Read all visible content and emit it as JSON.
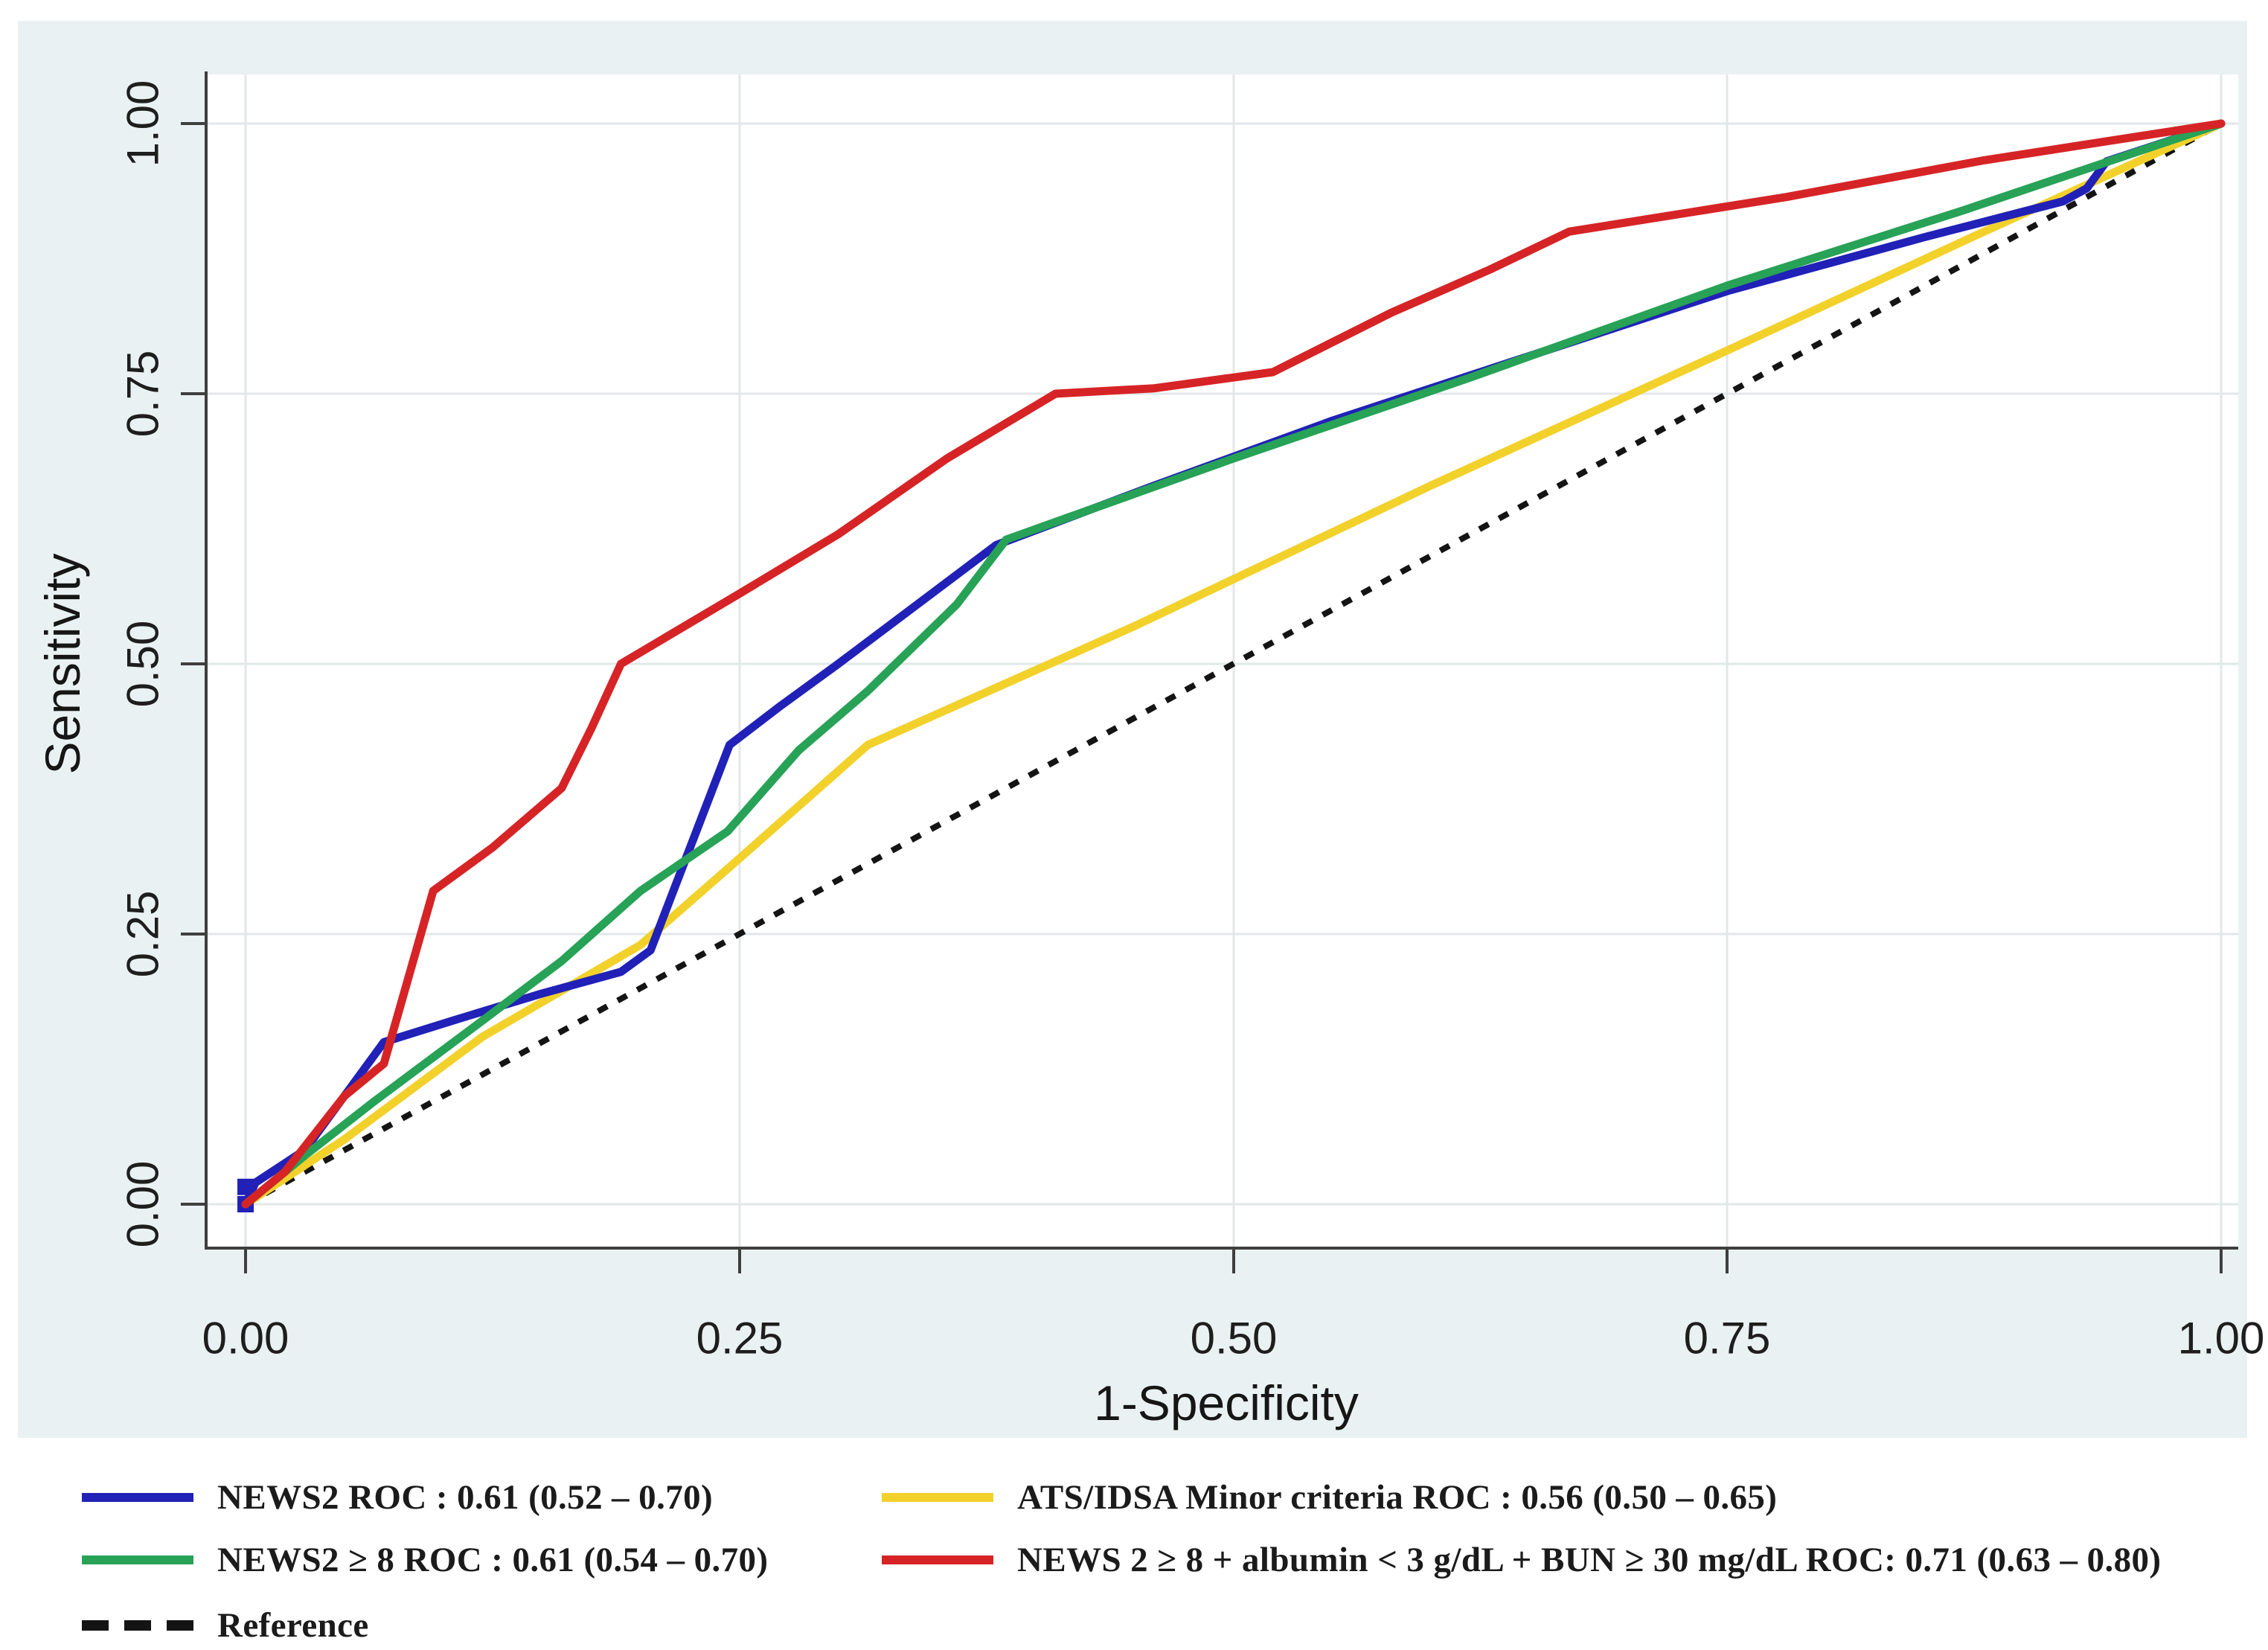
{
  "figure": {
    "background_color": "#eaf1f3",
    "plot_background": "#ffffff",
    "grid_color": "#e2e7e9",
    "axis_color": "#3f3f3f",
    "text_color": "#1e1e1e"
  },
  "axes": {
    "x": {
      "title": "1-Specificity",
      "tick_labels": [
        "0.00",
        "0.25",
        "0.50",
        "0.75",
        "1.00"
      ],
      "range": [
        0,
        1
      ]
    },
    "y": {
      "title": "Sensitivity",
      "tick_labels": [
        "0.00",
        "0.25",
        "0.50",
        "0.75",
        "1.00"
      ],
      "range": [
        0,
        1
      ]
    }
  },
  "legend": {
    "entries": [
      {
        "label": "NEWS2  ROC : 0.61 (0.52 – 0.70)",
        "color": "#2121b8",
        "dash": false
      },
      {
        "label": "ATS/IDSA Minor criteria  ROC : 0.56 (0.50 – 0.65)",
        "color": "#f2d12b",
        "dash": false
      },
      {
        "label": "NEWS2 ≥ 8 ROC : 0.61   (0.54 – 0.70)",
        "color": "#27a257",
        "dash": false
      },
      {
        "label": "NEWS 2 ≥ 8 + albumin  < 3 g/dL + BUN ≥ 30 mg/dL  ROC: 0.71 (0.63 – 0.80)",
        "color": "#d62426",
        "dash": false
      },
      {
        "label": "Reference",
        "color": "#141414",
        "dash": true
      }
    ]
  },
  "chart_data": {
    "type": "line",
    "title": "",
    "xlabel": "1-Specificity",
    "ylabel": "Sensitivity",
    "xlim": [
      0,
      1
    ],
    "ylim": [
      0,
      1
    ],
    "grid": true,
    "legend_position": "below",
    "series": [
      {
        "name": "Reference",
        "color": "#141414",
        "dash": true,
        "auc": null,
        "points": [
          [
            0,
            0
          ],
          [
            1,
            1
          ]
        ]
      },
      {
        "name": "ATS/IDSA Minor criteria",
        "color": "#f2d12b",
        "dash": false,
        "auc": "0.56",
        "ci": "0.50 – 0.65",
        "points": [
          [
            0,
            0
          ],
          [
            0.05,
            0.06
          ],
          [
            0.12,
            0.155
          ],
          [
            0.2,
            0.24
          ],
          [
            0.25,
            0.32
          ],
          [
            0.315,
            0.425
          ],
          [
            0.45,
            0.535
          ],
          [
            0.6,
            0.665
          ],
          [
            0.75,
            0.79
          ],
          [
            0.88,
            0.9
          ],
          [
            1,
            1
          ]
        ]
      },
      {
        "name": "NEWS2",
        "color": "#2121b8",
        "dash": false,
        "auc": "0.61",
        "ci": "0.52 – 0.70",
        "start_markers": [
          [
            0,
            0
          ],
          [
            0,
            0.016
          ]
        ],
        "points": [
          [
            0,
            0
          ],
          [
            0.005,
            0.02
          ],
          [
            0.03,
            0.05
          ],
          [
            0.07,
            0.15
          ],
          [
            0.105,
            0.17
          ],
          [
            0.15,
            0.195
          ],
          [
            0.19,
            0.215
          ],
          [
            0.205,
            0.235
          ],
          [
            0.245,
            0.425
          ],
          [
            0.27,
            0.46
          ],
          [
            0.3,
            0.5
          ],
          [
            0.38,
            0.61
          ],
          [
            0.46,
            0.665
          ],
          [
            0.55,
            0.725
          ],
          [
            0.65,
            0.785
          ],
          [
            0.75,
            0.845
          ],
          [
            0.85,
            0.895
          ],
          [
            0.92,
            0.928
          ],
          [
            0.932,
            0.94
          ],
          [
            0.942,
            0.965
          ],
          [
            1,
            1
          ]
        ]
      },
      {
        "name": "NEWS2 ≥ 8",
        "color": "#27a257",
        "dash": false,
        "auc": "0.61",
        "ci": "0.54 – 0.70",
        "points": [
          [
            0,
            0
          ],
          [
            0.03,
            0.045
          ],
          [
            0.065,
            0.095
          ],
          [
            0.12,
            0.17
          ],
          [
            0.16,
            0.225
          ],
          [
            0.2,
            0.29
          ],
          [
            0.244,
            0.345
          ],
          [
            0.28,
            0.42
          ],
          [
            0.315,
            0.475
          ],
          [
            0.36,
            0.555
          ],
          [
            0.385,
            0.615
          ],
          [
            0.5,
            0.69
          ],
          [
            0.62,
            0.765
          ],
          [
            0.75,
            0.85
          ],
          [
            0.87,
            0.92
          ],
          [
            1,
            1
          ]
        ]
      },
      {
        "name": "NEWS 2 ≥ 8 + albumin < 3 g/dL + BUN ≥ 30 mg/dL",
        "color": "#d62426",
        "dash": false,
        "auc": "0.71",
        "ci": "0.63 – 0.80",
        "points": [
          [
            0,
            0
          ],
          [
            0.02,
            0.03
          ],
          [
            0.05,
            0.1
          ],
          [
            0.07,
            0.13
          ],
          [
            0.095,
            0.29
          ],
          [
            0.125,
            0.33
          ],
          [
            0.16,
            0.385
          ],
          [
            0.175,
            0.44
          ],
          [
            0.19,
            0.5
          ],
          [
            0.25,
            0.565
          ],
          [
            0.3,
            0.62
          ],
          [
            0.355,
            0.69
          ],
          [
            0.41,
            0.75
          ],
          [
            0.46,
            0.755
          ],
          [
            0.52,
            0.77
          ],
          [
            0.58,
            0.825
          ],
          [
            0.63,
            0.865
          ],
          [
            0.67,
            0.9
          ],
          [
            0.78,
            0.932
          ],
          [
            0.88,
            0.966
          ],
          [
            1,
            1
          ]
        ]
      }
    ]
  }
}
